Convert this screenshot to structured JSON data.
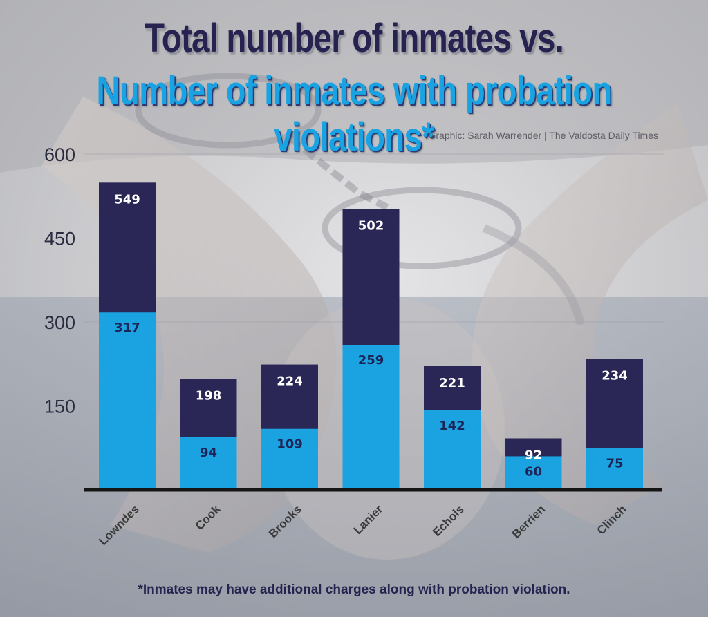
{
  "title_line1": "Total number of inmates vs.",
  "title_line2": "Number of inmates with probation violations*",
  "credit": "Graphic: Sarah Warrender | The Valdosta Daily Times",
  "footnote": "*Inmates may have additional charges along with probation violation.",
  "colors": {
    "total": "#2a2655",
    "probation": "#1ba2e0",
    "title_dark": "#272350",
    "title_blue": "#1aa3e2"
  },
  "chart_data": {
    "type": "bar",
    "categories": [
      "Lowndes",
      "Cook",
      "Brooks",
      "Lanier",
      "Echols",
      "Berrien",
      "Clinch"
    ],
    "series": [
      {
        "values": [
          549,
          198,
          224,
          502,
          221,
          92,
          234
        ]
      },
      {
        "values": [
          317,
          94,
          109,
          259,
          142,
          60,
          75
        ]
      }
    ],
    "yticks": [
      150,
      300,
      450,
      600
    ],
    "ylim": [
      0,
      600
    ],
    "grid": true,
    "legend": "none"
  }
}
